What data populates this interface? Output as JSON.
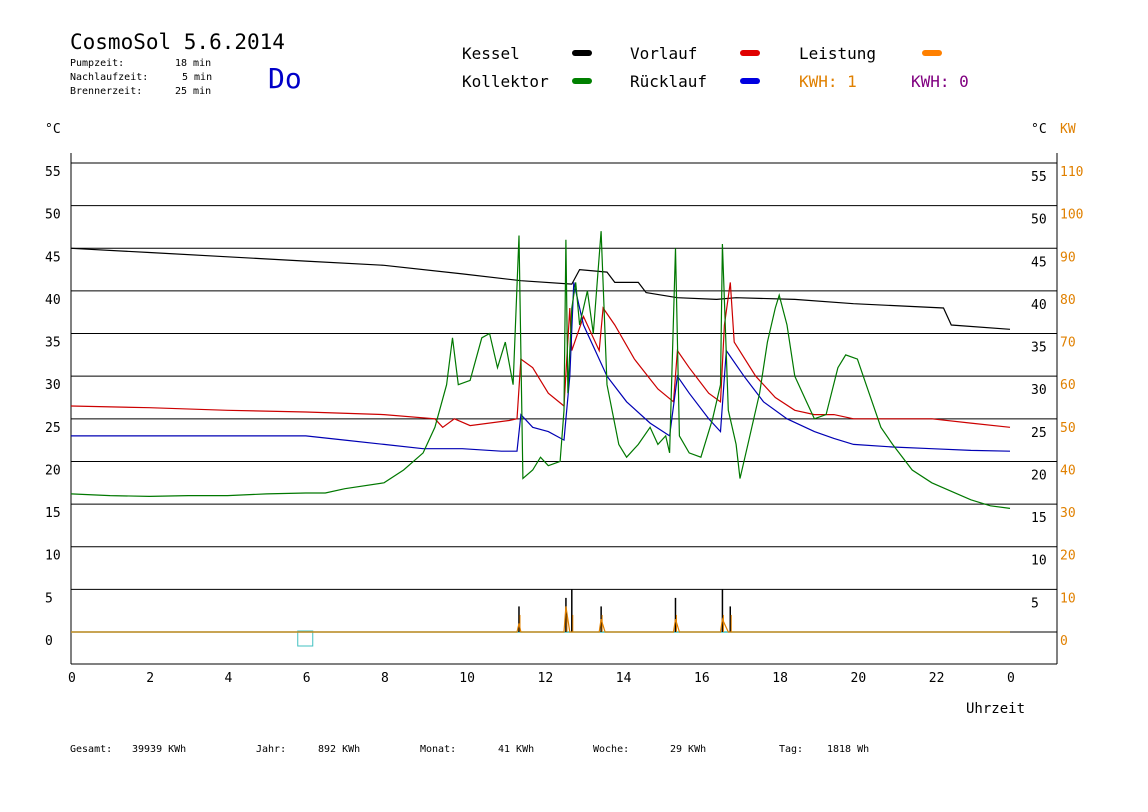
{
  "header": {
    "title": "CosmoSol 5.6.2014",
    "params": [
      {
        "label": "Pumpzeit:",
        "value": "18 min"
      },
      {
        "label": "Nachlaufzeit:",
        "value": "5 min"
      },
      {
        "label": "Brennerzeit:",
        "value": "25 min"
      }
    ],
    "weekday": "Do"
  },
  "legend": {
    "items": [
      {
        "label": "Kessel",
        "color": "#000000"
      },
      {
        "label": "Kollektor",
        "color": "#008000"
      },
      {
        "label": "Vorlauf",
        "color": "#e00000"
      },
      {
        "label": "Rücklauf",
        "color": "#0000e0"
      },
      {
        "label": "Leistung",
        "color": "#ff8000"
      }
    ],
    "kwh1": "KWH: 1",
    "kwh1_color": "#e08000",
    "kwh0": "KWH: 0",
    "kwh0_color": "#800080"
  },
  "axes": {
    "left_unit": "°C",
    "right_unit": "°C",
    "right_unit2": "KW",
    "xlabel": "Uhrzeit"
  },
  "footer": {
    "gesamt_label": "Gesamt:",
    "gesamt_value": "39939 KWh",
    "jahr_label": "Jahr:",
    "jahr_value": "892 KWh",
    "monat_label": "Monat:",
    "monat_value": "41 KWh",
    "woche_label": "Woche:",
    "woche_value": "29 KWh",
    "tag_label": "Tag:",
    "tag_value": "1818 Wh"
  },
  "chart_data": {
    "type": "line",
    "xlabel": "Uhrzeit",
    "x_ticks": [
      "0",
      "2",
      "4",
      "6",
      "8",
      "10",
      "12",
      "14",
      "16",
      "18",
      "20",
      "22",
      "0"
    ],
    "xlim": [
      0,
      24
    ],
    "ylim": [
      0,
      55
    ],
    "y_ticks_left": [
      0,
      5,
      10,
      15,
      20,
      25,
      30,
      35,
      40,
      45,
      50,
      55
    ],
    "y_ticks_right": [
      5,
      10,
      15,
      20,
      25,
      30,
      35,
      40,
      45,
      50,
      55
    ],
    "y2_ticks": [
      0,
      10,
      20,
      30,
      40,
      50,
      60,
      70,
      80,
      90,
      100,
      110
    ],
    "grid": true,
    "series": [
      {
        "name": "Kessel",
        "color": "#000000",
        "points": [
          [
            0,
            45
          ],
          [
            2,
            44.5
          ],
          [
            4,
            44
          ],
          [
            6,
            43.5
          ],
          [
            8,
            43
          ],
          [
            10,
            42
          ],
          [
            11.5,
            41.2
          ],
          [
            12.8,
            40.8
          ],
          [
            13,
            42.5
          ],
          [
            13.7,
            42.2
          ],
          [
            13.9,
            41
          ],
          [
            14.5,
            41
          ],
          [
            14.7,
            39.8
          ],
          [
            15.5,
            39.2
          ],
          [
            16.5,
            39
          ],
          [
            17,
            39.2
          ],
          [
            18.5,
            39
          ],
          [
            20,
            38.5
          ],
          [
            22.3,
            38
          ],
          [
            22.5,
            36
          ],
          [
            24,
            35.5
          ]
        ]
      },
      {
        "name": "Vorlauf",
        "color": "#cc0000",
        "points": [
          [
            0,
            26.5
          ],
          [
            2,
            26.3
          ],
          [
            4,
            26
          ],
          [
            6,
            25.8
          ],
          [
            8,
            25.5
          ],
          [
            9.3,
            25
          ],
          [
            9.5,
            24
          ],
          [
            9.8,
            25
          ],
          [
            10.2,
            24.2
          ],
          [
            11.2,
            24.8
          ],
          [
            11.4,
            25
          ],
          [
            11.5,
            32
          ],
          [
            11.8,
            31
          ],
          [
            12.2,
            28
          ],
          [
            12.6,
            26.5
          ],
          [
            12.75,
            38
          ],
          [
            12.8,
            33
          ],
          [
            13.1,
            37
          ],
          [
            13.5,
            33
          ],
          [
            13.6,
            38
          ],
          [
            13.9,
            36
          ],
          [
            14.4,
            32
          ],
          [
            15,
            28.5
          ],
          [
            15.4,
            27
          ],
          [
            15.5,
            33
          ],
          [
            15.8,
            31
          ],
          [
            16.3,
            28
          ],
          [
            16.6,
            27
          ],
          [
            16.7,
            36
          ],
          [
            16.85,
            41
          ],
          [
            16.95,
            34
          ],
          [
            17.5,
            30
          ],
          [
            18,
            27.5
          ],
          [
            18.5,
            26
          ],
          [
            19,
            25.5
          ],
          [
            19.5,
            25.5
          ],
          [
            20,
            25
          ],
          [
            21,
            25
          ],
          [
            22,
            25
          ],
          [
            23,
            24.5
          ],
          [
            24,
            24
          ]
        ]
      },
      {
        "name": "Rücklauf",
        "color": "#0000b4",
        "points": [
          [
            0,
            23
          ],
          [
            2,
            23
          ],
          [
            4,
            23
          ],
          [
            6,
            23
          ],
          [
            7,
            22.5
          ],
          [
            8,
            22
          ],
          [
            9,
            21.5
          ],
          [
            10,
            21.5
          ],
          [
            11,
            21.2
          ],
          [
            11.4,
            21.2
          ],
          [
            11.5,
            25.5
          ],
          [
            11.8,
            24
          ],
          [
            12.2,
            23.5
          ],
          [
            12.6,
            22.5
          ],
          [
            12.75,
            30
          ],
          [
            12.85,
            41
          ],
          [
            13.1,
            36
          ],
          [
            13.4,
            33
          ],
          [
            13.7,
            30
          ],
          [
            14.2,
            27
          ],
          [
            14.8,
            24.5
          ],
          [
            15.3,
            23
          ],
          [
            15.5,
            30
          ],
          [
            15.8,
            28
          ],
          [
            16.3,
            25
          ],
          [
            16.6,
            23.5
          ],
          [
            16.75,
            33
          ],
          [
            17.2,
            30
          ],
          [
            17.7,
            27
          ],
          [
            18.3,
            25
          ],
          [
            19,
            23.5
          ],
          [
            19.5,
            22.7
          ],
          [
            20,
            22
          ],
          [
            21,
            21.7
          ],
          [
            22,
            21.5
          ],
          [
            23,
            21.3
          ],
          [
            24,
            21.2
          ]
        ]
      },
      {
        "name": "Kollektor",
        "color": "#007800",
        "points": [
          [
            0,
            16.2
          ],
          [
            1,
            16
          ],
          [
            2,
            15.9
          ],
          [
            3,
            16
          ],
          [
            4,
            16
          ],
          [
            5,
            16.2
          ],
          [
            6,
            16.3
          ],
          [
            6.5,
            16.3
          ],
          [
            7,
            16.8
          ],
          [
            8,
            17.5
          ],
          [
            8.5,
            19
          ],
          [
            9,
            21
          ],
          [
            9.3,
            24
          ],
          [
            9.6,
            29
          ],
          [
            9.75,
            34.5
          ],
          [
            9.9,
            29
          ],
          [
            10.2,
            29.5
          ],
          [
            10.5,
            34.5
          ],
          [
            10.7,
            35
          ],
          [
            10.9,
            31
          ],
          [
            11.1,
            34
          ],
          [
            11.3,
            29
          ],
          [
            11.45,
            46.5
          ],
          [
            11.55,
            18
          ],
          [
            11.8,
            19
          ],
          [
            12,
            20.5
          ],
          [
            12.2,
            19.5
          ],
          [
            12.5,
            20
          ],
          [
            12.6,
            26
          ],
          [
            12.65,
            46
          ],
          [
            12.7,
            28
          ],
          [
            12.8,
            38
          ],
          [
            12.9,
            41
          ],
          [
            13,
            36
          ],
          [
            13.2,
            40
          ],
          [
            13.35,
            35
          ],
          [
            13.55,
            47
          ],
          [
            13.7,
            29
          ],
          [
            14,
            22
          ],
          [
            14.2,
            20.5
          ],
          [
            14.5,
            22
          ],
          [
            14.8,
            24
          ],
          [
            15,
            22
          ],
          [
            15.2,
            23
          ],
          [
            15.3,
            21
          ],
          [
            15.45,
            45
          ],
          [
            15.55,
            23
          ],
          [
            15.8,
            21
          ],
          [
            16.1,
            20.5
          ],
          [
            16.4,
            25
          ],
          [
            16.6,
            29
          ],
          [
            16.65,
            45.5
          ],
          [
            16.8,
            26
          ],
          [
            17,
            22
          ],
          [
            17.1,
            18
          ],
          [
            17.3,
            22
          ],
          [
            17.6,
            28
          ],
          [
            17.8,
            34
          ],
          [
            18,
            38
          ],
          [
            18.1,
            39.5
          ],
          [
            18.3,
            36
          ],
          [
            18.5,
            30
          ],
          [
            18.8,
            27
          ],
          [
            19,
            25
          ],
          [
            19.3,
            25.5
          ],
          [
            19.6,
            31
          ],
          [
            19.8,
            32.5
          ],
          [
            20.1,
            32
          ],
          [
            20.4,
            28
          ],
          [
            20.7,
            24
          ],
          [
            21,
            22
          ],
          [
            21.5,
            19
          ],
          [
            22,
            17.5
          ],
          [
            22.5,
            16.5
          ],
          [
            23,
            15.5
          ],
          [
            23.5,
            14.8
          ],
          [
            24,
            14.5
          ]
        ]
      },
      {
        "name": "Leistung",
        "color": "#e08000",
        "axis": "right",
        "points": [
          [
            0,
            0
          ],
          [
            11.4,
            0
          ],
          [
            11.45,
            2
          ],
          [
            11.5,
            0
          ],
          [
            12.6,
            0
          ],
          [
            12.65,
            6
          ],
          [
            12.75,
            0
          ],
          [
            13.5,
            0
          ],
          [
            13.55,
            3
          ],
          [
            13.65,
            0
          ],
          [
            15.4,
            0
          ],
          [
            15.45,
            3
          ],
          [
            15.55,
            0
          ],
          [
            16.6,
            0
          ],
          [
            16.65,
            3
          ],
          [
            16.8,
            0
          ],
          [
            24,
            0
          ]
        ]
      }
    ],
    "spikes": [
      11.45,
      12.65,
      12.8,
      13.55,
      15.45,
      16.65,
      16.85
    ],
    "baseline_color": "#40c0c0",
    "marker_x": 6
  }
}
